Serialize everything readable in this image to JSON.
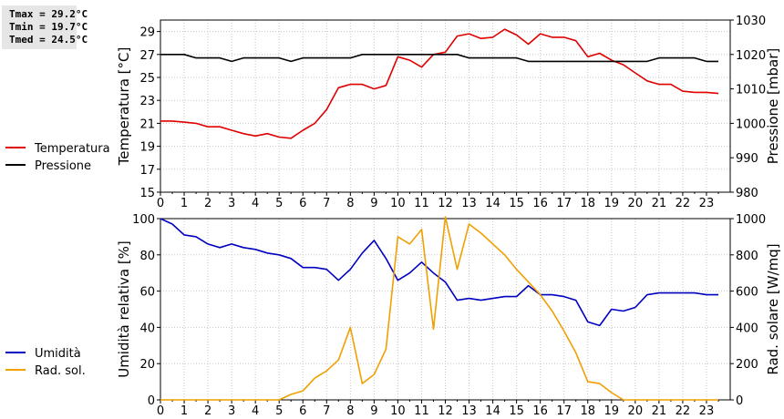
{
  "stats": {
    "tmax": "Tmax = 29.2°C",
    "tmin": "Tmin = 19.7°C",
    "tmed": "Tmed = 24.5°C"
  },
  "chart_data": [
    {
      "type": "line",
      "x_ticks": [
        0,
        1,
        2,
        3,
        4,
        5,
        6,
        7,
        8,
        9,
        10,
        11,
        12,
        13,
        14,
        15,
        16,
        17,
        18,
        19,
        20,
        21,
        22,
        23
      ],
      "x": [
        0,
        0.5,
        1,
        1.5,
        2,
        2.5,
        3,
        3.5,
        4,
        4.5,
        5,
        5.5,
        6,
        6.5,
        7,
        7.5,
        8,
        8.5,
        9,
        9.5,
        10,
        10.5,
        11,
        11.5,
        12,
        12.5,
        13,
        13.5,
        14,
        14.5,
        15,
        15.5,
        16,
        16.5,
        17,
        17.5,
        18,
        18.5,
        19,
        19.5,
        20,
        20.5,
        21,
        21.5,
        22,
        22.5,
        23,
        23.5
      ],
      "ylabel_left": "Temperatura [°C]",
      "ylabel_right": "Pressione [mbar]",
      "ylim_left": [
        15,
        30
      ],
      "yticks_left": [
        15,
        17,
        19,
        21,
        23,
        25,
        27,
        29
      ],
      "ylim_right": [
        980,
        1030
      ],
      "yticks_right": [
        980,
        990,
        1000,
        1010,
        1020,
        1030
      ],
      "series": [
        {
          "name": "Temperatura",
          "axis": "left",
          "color": "#e00000",
          "values": [
            21.2,
            21.2,
            21.1,
            21.0,
            20.7,
            20.7,
            20.4,
            20.1,
            19.9,
            20.1,
            19.8,
            19.7,
            20.4,
            21.0,
            22.2,
            24.1,
            24.4,
            24.4,
            24.0,
            24.3,
            26.8,
            26.5,
            25.9,
            27.0,
            27.2,
            28.6,
            28.8,
            28.4,
            28.5,
            29.2,
            28.7,
            27.9,
            28.8,
            28.5,
            28.5,
            28.2,
            26.8,
            27.1,
            26.5,
            26.1,
            25.4,
            24.7,
            24.4,
            24.4,
            23.8,
            23.7,
            23.7,
            23.6
          ]
        },
        {
          "name": "Pressione",
          "axis": "right",
          "color": "#000000",
          "values": [
            1020,
            1020,
            1020,
            1019,
            1019,
            1019,
            1018,
            1019,
            1019,
            1019,
            1019,
            1018,
            1019,
            1019,
            1019,
            1019,
            1019,
            1020,
            1020,
            1020,
            1020,
            1020,
            1020,
            1020,
            1020,
            1020,
            1019,
            1019,
            1019,
            1019,
            1019,
            1018,
            1018,
            1018,
            1018,
            1018,
            1018,
            1018,
            1018,
            1018,
            1018,
            1018,
            1019,
            1019,
            1019,
            1019,
            1018,
            1018
          ]
        }
      ]
    },
    {
      "type": "line",
      "x_ticks": [
        0,
        1,
        2,
        3,
        4,
        5,
        6,
        7,
        8,
        9,
        10,
        11,
        12,
        13,
        14,
        15,
        16,
        17,
        18,
        19,
        20,
        21,
        22,
        23
      ],
      "x": [
        0,
        0.5,
        1,
        1.5,
        2,
        2.5,
        3,
        3.5,
        4,
        4.5,
        5,
        5.5,
        6,
        6.5,
        7,
        7.5,
        8,
        8.5,
        9,
        9.5,
        10,
        10.5,
        11,
        11.5,
        12,
        12.5,
        13,
        13.5,
        14,
        14.5,
        15,
        15.5,
        16,
        16.5,
        17,
        17.5,
        18,
        18.5,
        19,
        19.5,
        20,
        20.5,
        21,
        21.5,
        22,
        22.5,
        23,
        23.5
      ],
      "ylabel_left": "Umidità relativa [%]",
      "ylabel_right": "Rad. solare [W/mq]",
      "ylim_left": [
        0,
        100
      ],
      "yticks_left": [
        0,
        20,
        40,
        60,
        80,
        100
      ],
      "ylim_right": [
        0,
        1000
      ],
      "yticks_right": [
        0,
        200,
        400,
        600,
        800,
        1000
      ],
      "series": [
        {
          "name": "Umidità",
          "axis": "left",
          "color": "#0000c0",
          "values": [
            100,
            97,
            91,
            90,
            86,
            84,
            86,
            84,
            83,
            81,
            80,
            78,
            73,
            73,
            72,
            66,
            72,
            81,
            88,
            78,
            66,
            70,
            76,
            70,
            65,
            55,
            56,
            55,
            56,
            57,
            57,
            63,
            58,
            58,
            57,
            55,
            43,
            41,
            50,
            49,
            51,
            58,
            59,
            59,
            59,
            59,
            58,
            58
          ]
        },
        {
          "name": "Rad. sol.",
          "axis": "right",
          "color": "#f0a000",
          "values": [
            0,
            0,
            0,
            0,
            0,
            0,
            0,
            0,
            0,
            0,
            0,
            30,
            50,
            120,
            160,
            220,
            400,
            90,
            140,
            280,
            900,
            860,
            940,
            390,
            1010,
            720,
            970,
            920,
            860,
            800,
            720,
            650,
            580,
            490,
            380,
            260,
            100,
            90,
            40,
            0,
            0,
            0,
            0,
            0,
            0,
            0,
            0,
            0
          ]
        }
      ]
    }
  ]
}
